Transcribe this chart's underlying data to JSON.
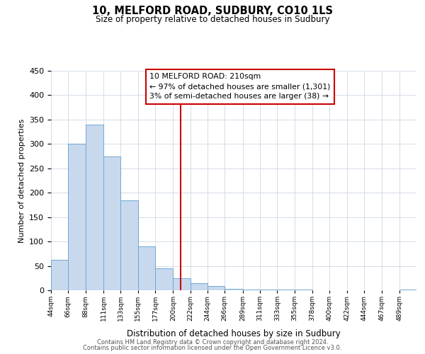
{
  "title": "10, MELFORD ROAD, SUDBURY, CO10 1LS",
  "subtitle": "Size of property relative to detached houses in Sudbury",
  "xlabel": "Distribution of detached houses by size in Sudbury",
  "ylabel": "Number of detached properties",
  "bar_color": "#c8d9ee",
  "bar_edge_color": "#6fa8d4",
  "background_color": "#ffffff",
  "grid_color": "#d4dce8",
  "vline_x": 210,
  "vline_color": "#cc0000",
  "annotation_title": "10 MELFORD ROAD: 210sqm",
  "annotation_line1": "← 97% of detached houses are smaller (1,301)",
  "annotation_line2": "3% of semi-detached houses are larger (38) →",
  "annotation_box_color": "#ffffff",
  "annotation_box_edge": "#cc0000",
  "bins": [
    44,
    66,
    88,
    111,
    133,
    155,
    177,
    200,
    222,
    244,
    266,
    289,
    311,
    333,
    355,
    378,
    400,
    422,
    444,
    467,
    489,
    511
  ],
  "counts": [
    62,
    301,
    340,
    275,
    185,
    90,
    45,
    25,
    15,
    8,
    3,
    2,
    1,
    1,
    1,
    0,
    0,
    0,
    0,
    0,
    2
  ],
  "tick_labels": [
    "44sqm",
    "66sqm",
    "88sqm",
    "111sqm",
    "133sqm",
    "155sqm",
    "177sqm",
    "200sqm",
    "222sqm",
    "244sqm",
    "266sqm",
    "289sqm",
    "311sqm",
    "333sqm",
    "355sqm",
    "378sqm",
    "400sqm",
    "422sqm",
    "444sqm",
    "467sqm",
    "489sqm"
  ],
  "ylim": [
    0,
    450
  ],
  "yticks": [
    0,
    50,
    100,
    150,
    200,
    250,
    300,
    350,
    400,
    450
  ],
  "footer1": "Contains HM Land Registry data © Crown copyright and database right 2024.",
  "footer2": "Contains public sector information licensed under the Open Government Licence v3.0."
}
